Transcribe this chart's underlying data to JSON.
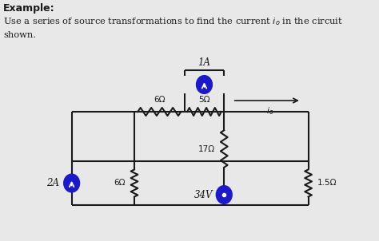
{
  "bg_color": "#e8e8e8",
  "circuit_color": "#1a1a1a",
  "source_color": "#1a1acc",
  "text_color": "#1a1a1a",
  "res_6ohm_top": "6Ω",
  "res_5ohm": "5Ω",
  "res_17ohm": "17Ω",
  "res_6ohm_bot": "6Ω",
  "res_1p5ohm": "1.5Ω",
  "src_1A": "1A",
  "src_2A": "2A",
  "src_34V": "34V",
  "io_label": "$i_o$",
  "title": "Example:",
  "desc": "Use a series of source transformations to find the current $i_o$ in the circuit\nshown."
}
